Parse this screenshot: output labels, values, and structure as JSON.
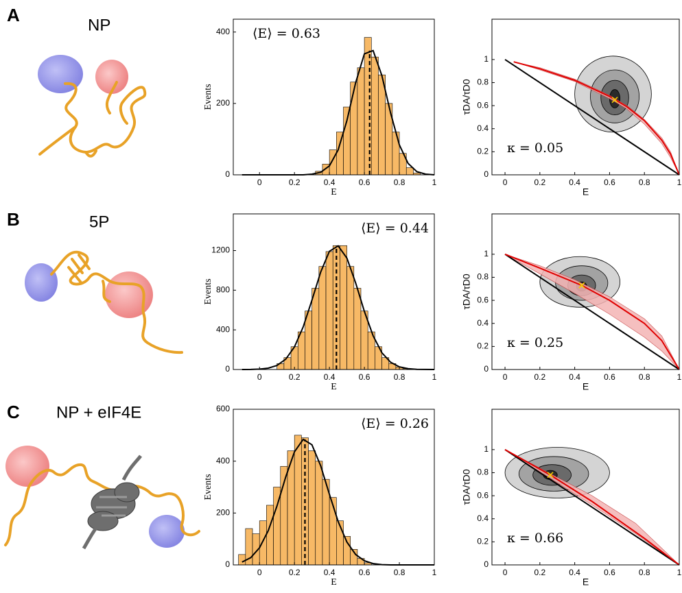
{
  "panels": [
    {
      "letter": "A",
      "title": "NP"
    },
    {
      "letter": "B",
      "title": "5P"
    },
    {
      "letter": "C",
      "title": "NP + eIF4E"
    }
  ],
  "chart_data": [
    {
      "type": "histogram",
      "color": "#f7b966",
      "bins": [
        0.32,
        0.36,
        0.4,
        0.44,
        0.48,
        0.52,
        0.56,
        0.6,
        0.64,
        0.68,
        0.72,
        0.76,
        0.8,
        0.84,
        0.88,
        0.92
      ],
      "counts": [
        10,
        30,
        70,
        120,
        190,
        260,
        300,
        385,
        330,
        280,
        200,
        120,
        60,
        20,
        5
      ],
      "xlim": [
        -0.15,
        1
      ],
      "xticks": [
        0,
        0.2,
        0.4,
        0.6,
        0.8,
        1
      ],
      "ylim": [
        0,
        436
      ],
      "yticks": [
        0,
        200,
        400
      ],
      "xlabel": "E",
      "ylabel": "Events",
      "annotation": "⟨E⟩ = 0.63",
      "mean": 0.63,
      "fit": {
        "color": "#000000",
        "x": [
          -0.1,
          -0.05,
          0,
          0.05,
          0.1,
          0.15,
          0.2,
          0.25,
          0.3,
          0.35,
          0.4,
          0.45,
          0.5,
          0.55,
          0.6,
          0.65,
          0.7,
          0.75,
          0.8,
          0.85,
          0.9,
          0.95,
          1
        ],
        "y": [
          0,
          0,
          0,
          0,
          0,
          0,
          0,
          0,
          2,
          7,
          25,
          70,
          152,
          258,
          339,
          348,
          278,
          173,
          84,
          32,
          9,
          2,
          0
        ]
      }
    },
    {
      "type": "contour",
      "xlim": [
        -0.075,
        1
      ],
      "xticks": [
        0,
        0.2,
        0.4,
        0.6,
        0.8,
        1
      ],
      "ylim": [
        0,
        1.35
      ],
      "yticks": [
        0,
        0.2,
        0.4,
        0.6,
        0.8,
        1
      ],
      "xlabel": "E",
      "ylabel": "τDA/τD0",
      "annotation": "κ = 0.05",
      "contours": [
        {
          "cx": 0.62,
          "cy": 0.7,
          "rx": 0.22,
          "ry": 0.33,
          "color": "#d4d4d4"
        },
        {
          "cx": 0.63,
          "cy": 0.68,
          "rx": 0.14,
          "ry": 0.23,
          "color": "#a3a3a3"
        },
        {
          "cx": 0.63,
          "cy": 0.67,
          "rx": 0.08,
          "ry": 0.15,
          "color": "#6a6a6a"
        },
        {
          "cx": 0.63,
          "cy": 0.66,
          "rx": 0.03,
          "ry": 0.08,
          "color": "#2a2a2a"
        }
      ],
      "band": {
        "color": "#f4b4b4",
        "x": [
          0.05,
          0.2,
          0.4,
          0.6,
          0.7,
          0.8,
          0.9,
          0.95,
          1
        ],
        "upper": [
          0.98,
          0.93,
          0.83,
          0.69,
          0.6,
          0.48,
          0.32,
          0.2,
          0
        ],
        "lower": [
          0.98,
          0.91,
          0.81,
          0.66,
          0.57,
          0.44,
          0.27,
          0.15,
          0
        ]
      },
      "lines": [
        {
          "color": "#000000",
          "x": [
            0,
            1
          ],
          "y": [
            1,
            0
          ]
        },
        {
          "color": "#e00000",
          "x": [
            0.05,
            0.2,
            0.4,
            0.6,
            0.7,
            0.8,
            0.9,
            0.95,
            1
          ],
          "y": [
            0.98,
            0.92,
            0.82,
            0.68,
            0.59,
            0.47,
            0.3,
            0.18,
            0
          ]
        }
      ],
      "marker": {
        "x": 0.63,
        "y": 0.65,
        "color": "#f5d000"
      }
    },
    {
      "type": "histogram",
      "color": "#f7b966",
      "bins": [
        0.1,
        0.14,
        0.18,
        0.22,
        0.26,
        0.3,
        0.34,
        0.38,
        0.42,
        0.46,
        0.5,
        0.54,
        0.58,
        0.62,
        0.66,
        0.7,
        0.74,
        0.78,
        0.82,
        0.86
      ],
      "counts": [
        60,
        120,
        230,
        380,
        590,
        820,
        1040,
        1190,
        1250,
        1250,
        1040,
        820,
        590,
        380,
        230,
        120,
        60,
        25,
        8
      ],
      "xlim": [
        -0.15,
        1
      ],
      "xticks": [
        0,
        0.2,
        0.4,
        0.6,
        0.8,
        1
      ],
      "ylim": [
        0,
        1570
      ],
      "yticks": [
        0,
        400,
        800,
        1200
      ],
      "xlabel": "E",
      "ylabel": "Events",
      "annotation": "⟨E⟩ = 0.44",
      "mean": 0.44,
      "fit": {
        "color": "#000000",
        "x": [
          -0.1,
          -0.05,
          0,
          0.05,
          0.1,
          0.15,
          0.2,
          0.25,
          0.3,
          0.35,
          0.4,
          0.45,
          0.5,
          0.55,
          0.6,
          0.65,
          0.7,
          0.75,
          0.8,
          0.85,
          0.9,
          0.95,
          1
        ],
        "y": [
          0,
          1,
          4,
          14,
          41,
          104,
          228,
          430,
          700,
          983,
          1193,
          1247,
          1124,
          874,
          586,
          340,
          169,
          73,
          27,
          9,
          2,
          1,
          0
        ]
      }
    },
    {
      "type": "contour",
      "xlim": [
        -0.075,
        1
      ],
      "xticks": [
        0,
        0.2,
        0.4,
        0.6,
        0.8,
        1
      ],
      "ylim": [
        0,
        1.35
      ],
      "yticks": [
        0,
        0.2,
        0.4,
        0.6,
        0.8,
        1
      ],
      "xlabel": "E",
      "ylabel": "τDA/τD0",
      "annotation": "κ = 0.25",
      "contours": [
        {
          "cx": 0.43,
          "cy": 0.76,
          "rx": 0.23,
          "ry": 0.22,
          "color": "#d4d4d4"
        },
        {
          "cx": 0.44,
          "cy": 0.75,
          "rx": 0.15,
          "ry": 0.15,
          "color": "#a3a3a3"
        },
        {
          "cx": 0.44,
          "cy": 0.73,
          "rx": 0.08,
          "ry": 0.09,
          "color": "#6a6a6a"
        },
        {
          "cx": 0.44,
          "cy": 0.72,
          "rx": 0.03,
          "ry": 0.04,
          "color": "#2a2a2a"
        }
      ],
      "band": {
        "color": "#f4b4b4",
        "x": [
          0,
          0.2,
          0.4,
          0.6,
          0.8,
          0.9,
          1
        ],
        "upper": [
          1,
          0.9,
          0.78,
          0.63,
          0.44,
          0.29,
          0
        ],
        "lower": [
          1,
          0.83,
          0.66,
          0.48,
          0.28,
          0.16,
          0
        ]
      },
      "lines": [
        {
          "color": "#000000",
          "x": [
            0,
            1
          ],
          "y": [
            1,
            0
          ]
        },
        {
          "color": "#e00000",
          "x": [
            0,
            0.2,
            0.44,
            0.6,
            0.8,
            0.9,
            1
          ],
          "y": [
            1,
            0.88,
            0.73,
            0.6,
            0.4,
            0.25,
            0
          ]
        }
      ],
      "marker": {
        "x": 0.44,
        "y": 0.73,
        "color": "#f5d000"
      }
    },
    {
      "type": "histogram",
      "color": "#f7b966",
      "bins": [
        -0.12,
        -0.08,
        -0.04,
        0,
        0.04,
        0.08,
        0.12,
        0.16,
        0.2,
        0.24,
        0.28,
        0.32,
        0.36,
        0.4,
        0.44,
        0.48,
        0.52,
        0.56,
        0.6,
        0.64
      ],
      "counts": [
        40,
        140,
        120,
        170,
        230,
        300,
        380,
        440,
        500,
        490,
        440,
        400,
        330,
        260,
        170,
        110,
        60,
        25,
        8
      ],
      "xlim": [
        -0.15,
        1
      ],
      "xticks": [
        0,
        0.2,
        0.4,
        0.6,
        0.8,
        1
      ],
      "ylim": [
        0,
        600
      ],
      "yticks": [
        0,
        200,
        400,
        600
      ],
      "xlabel": "E",
      "ylabel": "Events",
      "annotation": "⟨E⟩ = 0.26",
      "mean": 0.26,
      "fit": {
        "color": "#000000",
        "x": [
          -0.1,
          -0.05,
          0,
          0.05,
          0.1,
          0.15,
          0.2,
          0.25,
          0.3,
          0.35,
          0.4,
          0.45,
          0.5,
          0.55,
          0.6,
          0.65,
          0.7,
          0.75,
          0.8,
          0.85,
          0.9,
          0.95,
          1
        ],
        "y": [
          11,
          28,
          66,
          132,
          227,
          339,
          436,
          484,
          463,
          382,
          272,
          167,
          88,
          40,
          16,
          5,
          1,
          0,
          0,
          0,
          0,
          0,
          0
        ]
      }
    },
    {
      "type": "contour",
      "xlim": [
        -0.075,
        1
      ],
      "xticks": [
        0,
        0.2,
        0.4,
        0.6,
        0.8,
        1
      ],
      "ylim": [
        0,
        1.35
      ],
      "yticks": [
        0,
        0.2,
        0.4,
        0.6,
        0.8,
        1
      ],
      "xlabel": "E",
      "ylabel": "τDA/τD0",
      "annotation": "κ = 0.66",
      "contours": [
        {
          "cx": 0.3,
          "cy": 0.8,
          "rx": 0.3,
          "ry": 0.22,
          "color": "#d4d4d4"
        },
        {
          "cx": 0.28,
          "cy": 0.79,
          "rx": 0.2,
          "ry": 0.15,
          "color": "#a3a3a3"
        },
        {
          "cx": 0.27,
          "cy": 0.78,
          "rx": 0.11,
          "ry": 0.09,
          "color": "#6a6a6a"
        },
        {
          "cx": 0.26,
          "cy": 0.78,
          "rx": 0.04,
          "ry": 0.04,
          "color": "#2a2a2a"
        }
      ],
      "band": {
        "color": "#f4b4b4",
        "x": [
          0,
          0.25,
          0.5,
          0.75,
          1
        ],
        "upper": [
          1,
          0.8,
          0.6,
          0.36,
          0
        ],
        "lower": [
          1,
          0.76,
          0.52,
          0.27,
          0
        ]
      },
      "lines": [
        {
          "color": "#000000",
          "x": [
            0,
            1
          ],
          "y": [
            1,
            0
          ]
        },
        {
          "color": "#e00000",
          "x": [
            0,
            0.26,
            0.5,
            0.8,
            1
          ],
          "y": [
            1,
            0.78,
            0.55,
            0.23,
            0
          ]
        }
      ],
      "marker": {
        "x": 0.26,
        "y": 0.78,
        "color": "#f5d000"
      }
    }
  ]
}
